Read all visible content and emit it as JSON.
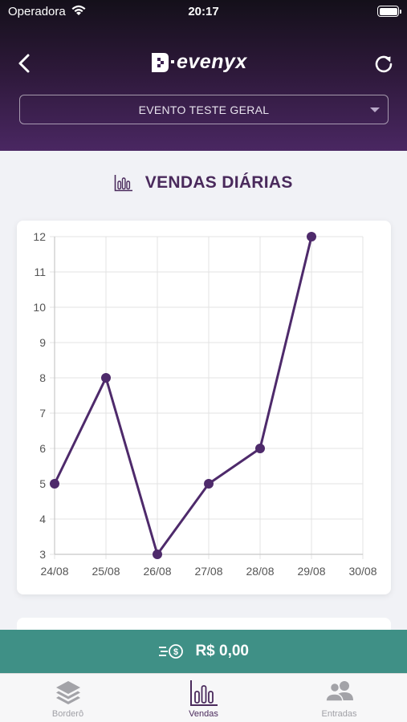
{
  "status_bar": {
    "carrier": "Operadora",
    "time": "20:17"
  },
  "header": {
    "logo_text": "evenyx",
    "event_select": {
      "value": "EVENTO TESTE GERAL"
    }
  },
  "section": {
    "title": "VENDAS DIÁRIAS",
    "icon": "bar-chart-icon"
  },
  "chart_data": {
    "type": "line",
    "categories": [
      "24/08",
      "25/08",
      "26/08",
      "27/08",
      "28/08",
      "29/08",
      "30/08"
    ],
    "series": [
      {
        "values": [
          5,
          8,
          3,
          5,
          6,
          12,
          null
        ]
      }
    ],
    "y_ticks": [
      3,
      4,
      5,
      6,
      7,
      8,
      9,
      10,
      11,
      12
    ],
    "ylim": [
      3,
      12
    ],
    "grid": true,
    "color": "#4e2a6b"
  },
  "total": {
    "value": "R$ 0,00",
    "icon": "money-list-icon"
  },
  "tabs": [
    {
      "label": "Borderô",
      "icon": "layers-icon",
      "active": false
    },
    {
      "label": "Vendas",
      "icon": "bar-chart-icon",
      "active": true
    },
    {
      "label": "Entradas",
      "icon": "users-icon",
      "active": false
    }
  ]
}
